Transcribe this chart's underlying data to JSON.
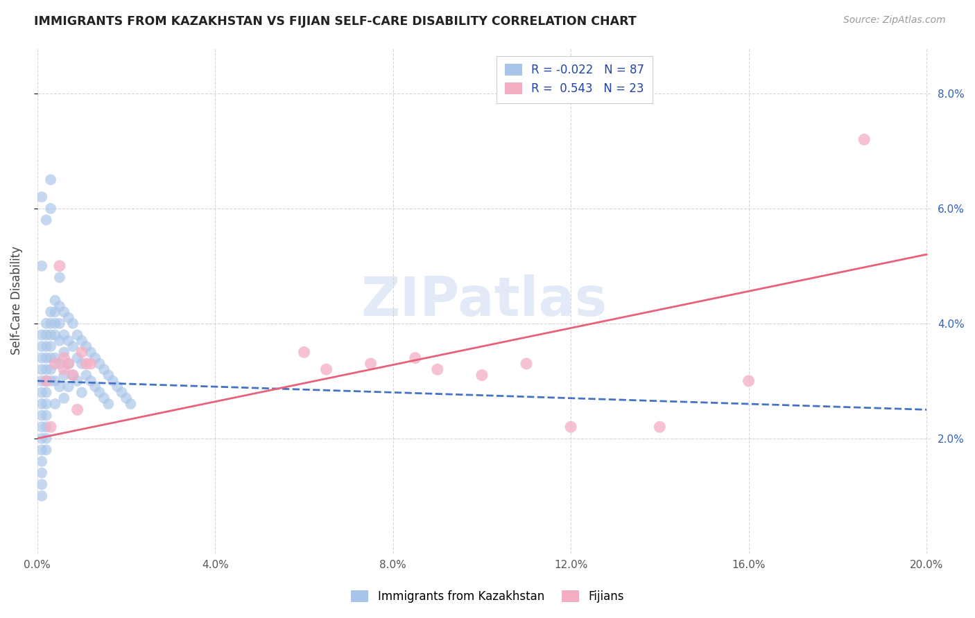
{
  "title": "IMMIGRANTS FROM KAZAKHSTAN VS FIJIAN SELF-CARE DISABILITY CORRELATION CHART",
  "source": "Source: ZipAtlas.com",
  "ylabel": "Self-Care Disability",
  "xlim_min": 0.0,
  "xlim_max": 0.201,
  "ylim_min": 0.0,
  "ylim_max": 0.088,
  "xticks": [
    0.0,
    0.04,
    0.08,
    0.12,
    0.16,
    0.2
  ],
  "xticklabels": [
    "0.0%",
    "4.0%",
    "8.0%",
    "12.0%",
    "16.0%",
    "20.0%"
  ],
  "yticks": [
    0.02,
    0.04,
    0.06,
    0.08
  ],
  "yticklabels_right": [
    "2.0%",
    "4.0%",
    "6.0%",
    "8.0%"
  ],
  "blue_color": "#a8c4e8",
  "pink_color": "#f4aec4",
  "blue_line_color": "#4472c4",
  "pink_line_color": "#e8607a",
  "R_blue": -0.022,
  "N_blue": 87,
  "R_pink": 0.543,
  "N_pink": 23,
  "legend_label_blue": "Immigrants from Kazakhstan",
  "legend_label_pink": "Fijians",
  "watermark": "ZIPatlas",
  "blue_trend_x": [
    0.0,
    0.2
  ],
  "blue_trend_y": [
    0.03,
    0.025
  ],
  "pink_trend_x": [
    0.0,
    0.2
  ],
  "pink_trend_y": [
    0.02,
    0.052
  ],
  "blue_x": [
    0.001,
    0.001,
    0.001,
    0.001,
    0.001,
    0.001,
    0.001,
    0.001,
    0.001,
    0.001,
    0.001,
    0.001,
    0.001,
    0.001,
    0.001,
    0.002,
    0.002,
    0.002,
    0.002,
    0.002,
    0.002,
    0.002,
    0.002,
    0.002,
    0.002,
    0.002,
    0.002,
    0.003,
    0.003,
    0.003,
    0.003,
    0.003,
    0.003,
    0.003,
    0.004,
    0.004,
    0.004,
    0.004,
    0.004,
    0.004,
    0.005,
    0.005,
    0.005,
    0.005,
    0.005,
    0.006,
    0.006,
    0.006,
    0.006,
    0.006,
    0.007,
    0.007,
    0.007,
    0.007,
    0.008,
    0.008,
    0.008,
    0.009,
    0.009,
    0.009,
    0.01,
    0.01,
    0.01,
    0.011,
    0.011,
    0.012,
    0.012,
    0.013,
    0.013,
    0.014,
    0.014,
    0.015,
    0.015,
    0.016,
    0.016,
    0.017,
    0.018,
    0.019,
    0.02,
    0.021,
    0.001,
    0.001,
    0.002,
    0.003,
    0.003,
    0.004,
    0.005
  ],
  "blue_y": [
    0.03,
    0.028,
    0.026,
    0.024,
    0.022,
    0.02,
    0.018,
    0.016,
    0.014,
    0.012,
    0.038,
    0.036,
    0.034,
    0.032,
    0.01,
    0.04,
    0.038,
    0.036,
    0.034,
    0.032,
    0.03,
    0.028,
    0.026,
    0.024,
    0.022,
    0.02,
    0.018,
    0.042,
    0.04,
    0.038,
    0.036,
    0.034,
    0.032,
    0.03,
    0.044,
    0.042,
    0.038,
    0.034,
    0.03,
    0.026,
    0.043,
    0.04,
    0.037,
    0.033,
    0.029,
    0.042,
    0.038,
    0.035,
    0.031,
    0.027,
    0.041,
    0.037,
    0.033,
    0.029,
    0.04,
    0.036,
    0.031,
    0.038,
    0.034,
    0.03,
    0.037,
    0.033,
    0.028,
    0.036,
    0.031,
    0.035,
    0.03,
    0.034,
    0.029,
    0.033,
    0.028,
    0.032,
    0.027,
    0.031,
    0.026,
    0.03,
    0.029,
    0.028,
    0.027,
    0.026,
    0.05,
    0.062,
    0.058,
    0.06,
    0.065,
    0.04,
    0.048
  ],
  "pink_x": [
    0.002,
    0.003,
    0.004,
    0.005,
    0.006,
    0.006,
    0.007,
    0.008,
    0.009,
    0.01,
    0.011,
    0.012,
    0.06,
    0.065,
    0.075,
    0.085,
    0.09,
    0.1,
    0.11,
    0.12,
    0.14,
    0.16,
    0.186
  ],
  "pink_y": [
    0.03,
    0.022,
    0.033,
    0.05,
    0.034,
    0.032,
    0.033,
    0.031,
    0.025,
    0.035,
    0.033,
    0.033,
    0.035,
    0.032,
    0.033,
    0.034,
    0.032,
    0.031,
    0.033,
    0.022,
    0.022,
    0.03,
    0.072
  ]
}
